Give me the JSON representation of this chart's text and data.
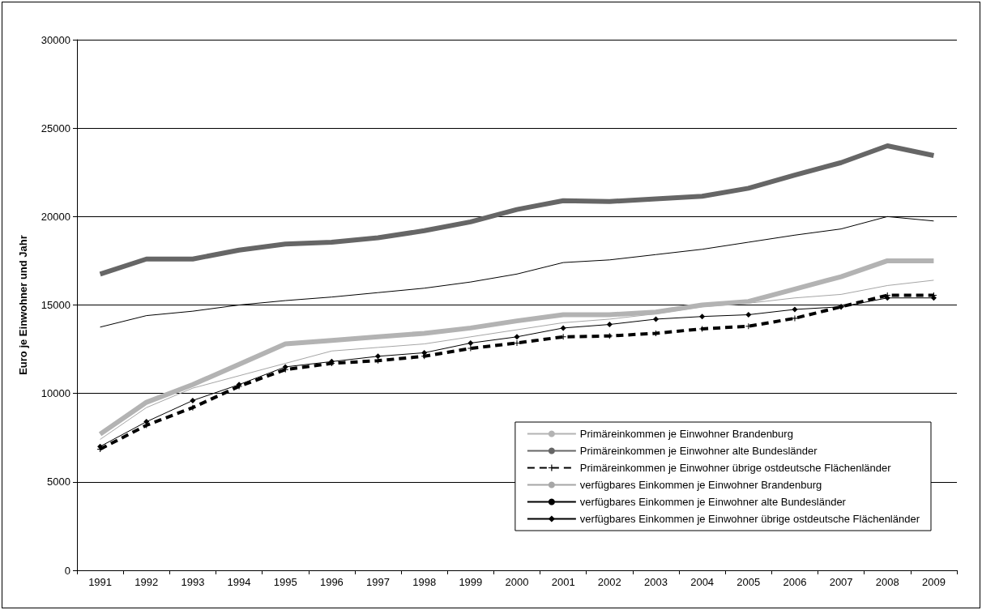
{
  "chart_data": {
    "type": "line",
    "ylabel": "Euro je Einwohner und Jahr",
    "categories": [
      "1991",
      "1992",
      "1993",
      "1994",
      "1995",
      "1996",
      "1997",
      "1998",
      "1999",
      "2000",
      "2001",
      "2002",
      "2003",
      "2004",
      "2005",
      "2006",
      "2007",
      "2008",
      "2009"
    ],
    "series": [
      {
        "name": "Primäreinkommen je Einwohner Brandenburg",
        "color": "#b3b3b3",
        "line_style": "solid",
        "marker": "none",
        "values": [
          7700,
          9500,
          10500,
          11650,
          12800,
          13000,
          13200,
          13400,
          13700,
          14100,
          14450,
          14450,
          14600,
          15000,
          15200,
          15900,
          16600,
          17500,
          17500
        ]
      },
      {
        "name": "Primäreinkommen je Einwohner alte Bundesländer",
        "color": "#666666",
        "line_style": "solid",
        "marker": "none",
        "values": [
          16750,
          17600,
          17600,
          18100,
          18450,
          18550,
          18800,
          19200,
          19700,
          20400,
          20900,
          20850,
          21000,
          21150,
          21600,
          22350,
          23050,
          24000,
          23450
        ]
      },
      {
        "name": "Primäreinkommen je Einwohner übrige ostdeutsche Flächenländer",
        "color": "#000000",
        "line_style": "dashed",
        "marker": "cross",
        "values": [
          6850,
          8200,
          9200,
          10400,
          11350,
          11700,
          11850,
          12100,
          12550,
          12850,
          13200,
          13250,
          13400,
          13650,
          13800,
          14250,
          14900,
          15550,
          15550
        ]
      },
      {
        "name": "verfügbares Einkommen je Einwohner Brandenburg",
        "color": "#a6a6a6",
        "line_style": "solid",
        "marker": "none",
        "values": [
          7400,
          9200,
          10300,
          11000,
          11700,
          12400,
          12600,
          12800,
          13200,
          13600,
          14000,
          14200,
          14500,
          14900,
          15100,
          15400,
          15600,
          16100,
          16400
        ]
      },
      {
        "name": "verfügbares Einkommen je Einwohner alte Bundesländer",
        "color": "#000000",
        "line_style": "solid",
        "marker": "none",
        "values": [
          13750,
          14400,
          14650,
          15000,
          15250,
          15450,
          15700,
          15950,
          16300,
          16750,
          17400,
          17550,
          17850,
          18150,
          18550,
          18950,
          19300,
          20000,
          19750
        ]
      },
      {
        "name": "verfügbares Einkommen je Einwohner übrige ostdeutsche Flächenländer",
        "color": "#000000",
        "line_style": "solid",
        "marker": "diamond",
        "values": [
          7000,
          8400,
          9600,
          10500,
          11500,
          11800,
          12100,
          12300,
          12850,
          13200,
          13700,
          13900,
          14200,
          14350,
          14450,
          14750,
          14900,
          15400,
          15400
        ]
      }
    ],
    "ylim": [
      0,
      30000
    ],
    "yticks": [
      0,
      5000,
      10000,
      15000,
      20000,
      25000,
      30000
    ],
    "grid": "y",
    "legend": "bottom right"
  }
}
